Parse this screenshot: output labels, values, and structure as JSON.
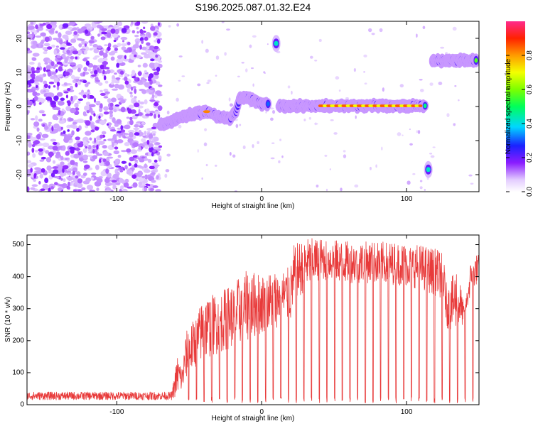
{
  "page": {
    "title": "S196.2025.087.01.32.E24"
  },
  "chart_data": [
    {
      "type": "heatmap",
      "xlabel": "Height of straight line (km)",
      "ylabel": "Frequency (Hz)",
      "xlim": [
        -162,
        150
      ],
      "ylim": [
        -25,
        25
      ],
      "xticks": [
        -100,
        0,
        100
      ],
      "yticks": [
        -20,
        -10,
        0,
        10,
        20
      ],
      "colorbar": {
        "label": "Normalized spectral amplitude",
        "range": [
          0,
          1
        ],
        "ticks": [
          0.0,
          0.2,
          0.4,
          0.6,
          0.8
        ]
      },
      "features": [
        {
          "kind": "noise",
          "x": [
            -162,
            -70
          ],
          "y": [
            -25,
            25
          ],
          "amplitude": 0.2
        },
        {
          "kind": "track",
          "points": [
            [
              -70,
              -5.5
            ],
            [
              -63,
              -4.5
            ],
            [
              -55,
              -3
            ],
            [
              -45,
              -2
            ],
            [
              -38,
              -1.5
            ],
            [
              -30,
              -3
            ],
            [
              -22,
              -3.5
            ],
            [
              -18,
              -1.5
            ],
            [
              -15,
              2.5
            ],
            [
              -10,
              2.5
            ],
            [
              -5,
              1.5
            ],
            [
              0,
              0.8
            ],
            [
              5,
              0.6
            ]
          ],
          "amplitude": 0.35
        },
        {
          "kind": "track",
          "points": [
            [
              12,
              0.2
            ],
            [
              40,
              0.2
            ],
            [
              113,
              0.2
            ]
          ],
          "amplitude": 0.45,
          "peak_amplitude": 0.85,
          "peak_x": [
            40,
            110
          ]
        },
        {
          "kind": "blob",
          "x": 10,
          "y": 18.5,
          "amplitude": 0.3
        },
        {
          "kind": "blob",
          "x": 115,
          "y": -18.5,
          "amplitude": 0.3
        },
        {
          "kind": "track",
          "points": [
            [
              118,
              13.5
            ],
            [
              148,
              13.5
            ]
          ],
          "amplitude": 0.55
        }
      ]
    },
    {
      "type": "line",
      "xlabel": "Height of straight line (km)",
      "ylabel": "SNR (10 * v/v)",
      "xlim": [
        -162,
        150
      ],
      "ylim": [
        0,
        530
      ],
      "xticks": [
        -100,
        0,
        100
      ],
      "yticks": [
        0,
        100,
        200,
        300,
        400,
        500
      ],
      "color": "#e83a3a",
      "envelope": {
        "x": [
          -162,
          -62,
          -58,
          -55,
          -52,
          -45,
          -40,
          -30,
          -20,
          -10,
          0,
          10,
          20,
          22,
          30,
          40,
          60,
          80,
          100,
          110,
          125,
          128,
          135,
          140,
          145,
          150
        ],
        "base": [
          15,
          15,
          30,
          40,
          80,
          120,
          140,
          160,
          180,
          200,
          220,
          240,
          260,
          300,
          360,
          390,
          380,
          380,
          370,
          360,
          330,
          240,
          220,
          260,
          360,
          380
        ],
        "peak": [
          40,
          40,
          160,
          120,
          230,
          280,
          340,
          350,
          380,
          420,
          410,
          420,
          430,
          500,
          520,
          520,
          510,
          510,
          505,
          500,
          480,
          360,
          440,
          300,
          470,
          470
        ]
      },
      "dip_start_x": -55,
      "dip_period_km": 5.3,
      "dip_floor": 5
    }
  ]
}
